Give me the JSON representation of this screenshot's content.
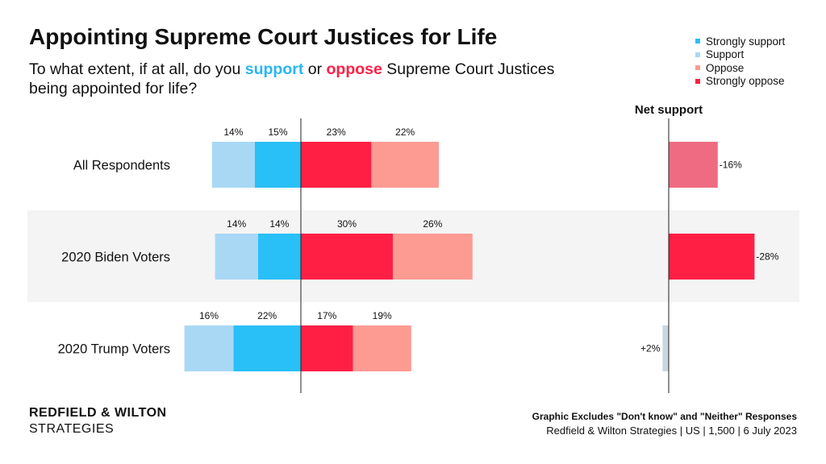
{
  "title": "Appointing Supreme Court Justices for Life",
  "subtitle": {
    "part1": "To what extent, if at all, do you ",
    "support_word": "support",
    "part2": " or ",
    "oppose_word": "oppose",
    "part3": " Supreme Court Justices being appointed for life?"
  },
  "legend": [
    {
      "label": "Strongly support",
      "color": "#29bff7"
    },
    {
      "label": "Support",
      "color": "#a9d8f5"
    },
    {
      "label": "Oppose",
      "color": "#fd9b93"
    },
    {
      "label": "Strongly oppose",
      "color": "#ff1f45"
    }
  ],
  "net_header": "Net support",
  "branding": {
    "line1": "REDFIELD & WILTON",
    "line2": "STRATEGIES"
  },
  "footnote": {
    "line1": "Graphic Excludes \"Don't know\" and \"Neither\" Responses",
    "line2": "Redfield & Wilton Strategies | US | 1,500 | 6 July 2023"
  },
  "chart_data": {
    "type": "bar",
    "subtype": "diverging-stacked",
    "categories": [
      "All Respondents",
      "2020 Biden Voters",
      "2020 Trump Voters"
    ],
    "series": [
      {
        "name": "Support",
        "values": [
          14,
          14,
          16
        ],
        "labels": [
          "14%",
          "14%",
          "16%"
        ],
        "color": "#a9d8f5",
        "side": "left"
      },
      {
        "name": "Strongly support",
        "values": [
          15,
          14,
          22
        ],
        "labels": [
          "15%",
          "14%",
          "22%"
        ],
        "color": "#29bff7",
        "side": "left"
      },
      {
        "name": "Strongly oppose",
        "values": [
          23,
          30,
          17
        ],
        "labels": [
          "23%",
          "30%",
          "17%"
        ],
        "color": "#ff1f45",
        "side": "right"
      },
      {
        "name": "Oppose",
        "values": [
          22,
          26,
          19
        ],
        "labels": [
          "22%",
          "26%",
          "19%"
        ],
        "color": "#fd9b93",
        "side": "right"
      }
    ],
    "net_support": {
      "values": [
        -16,
        -28,
        2
      ],
      "labels": [
        "-16%",
        "-28%",
        "+2%"
      ],
      "colors": [
        "#ee6b81",
        "#ff1f45",
        "#c9d6de"
      ]
    },
    "highlight_row_index": 1,
    "highlight_color": "#f4f4f4"
  }
}
